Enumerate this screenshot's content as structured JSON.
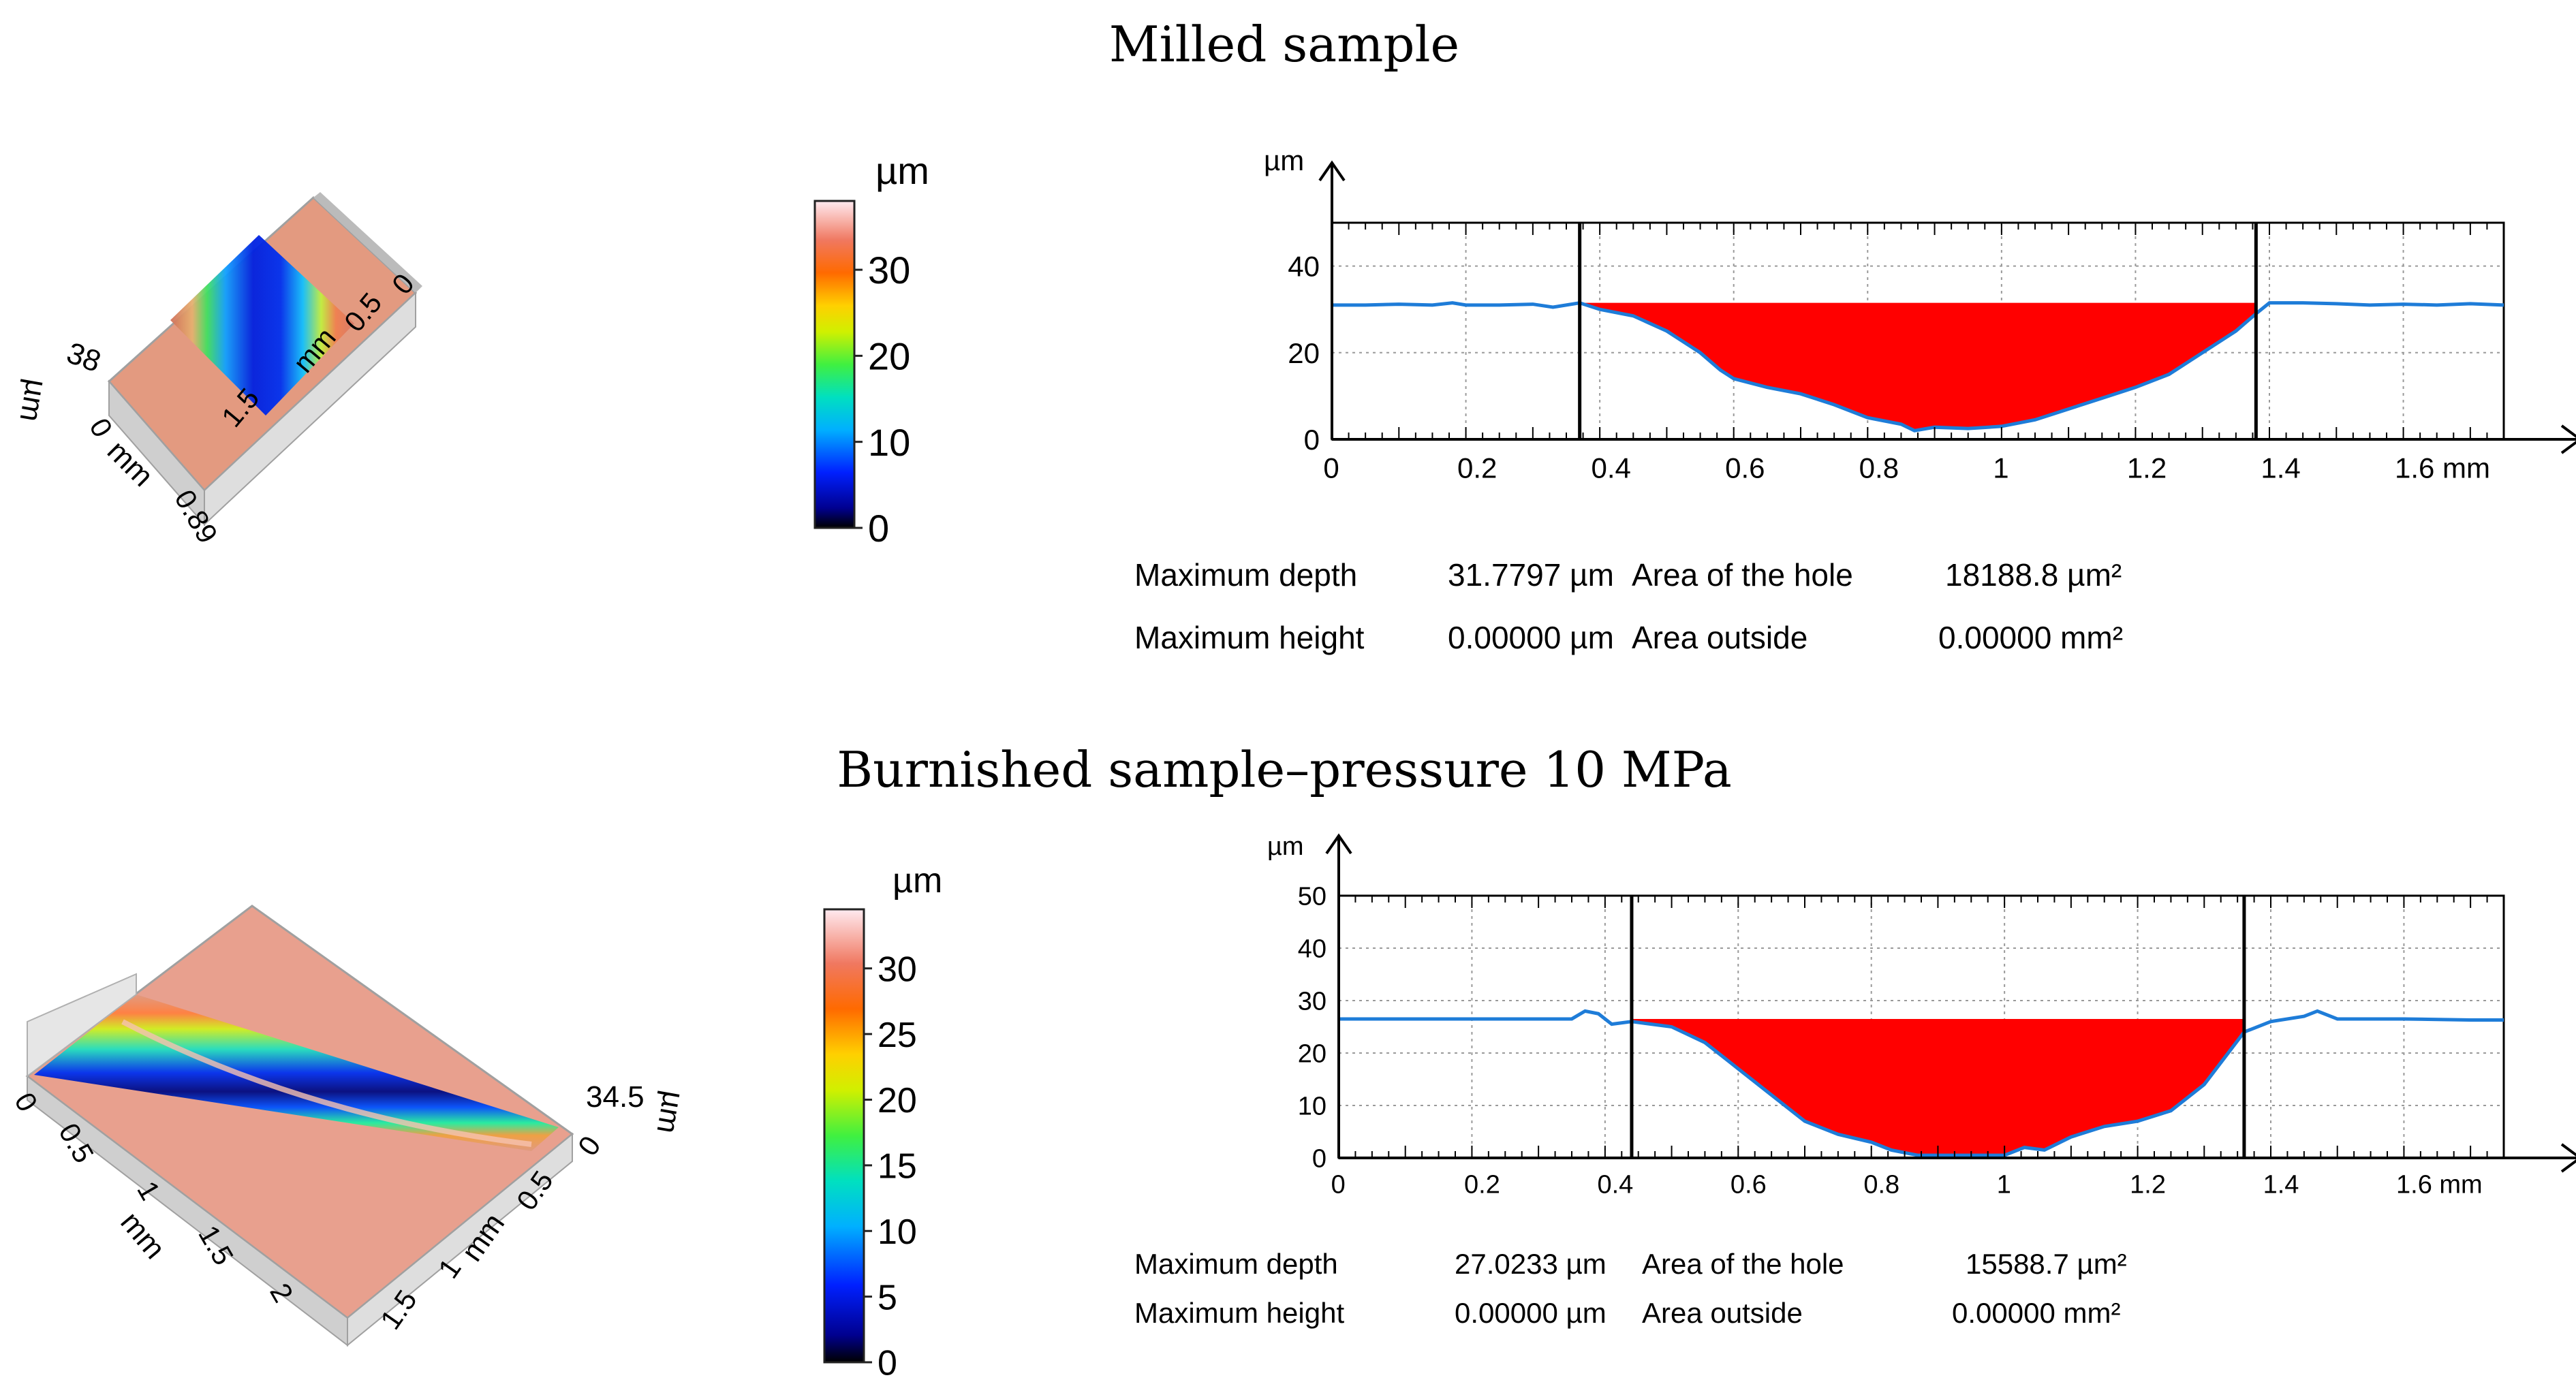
{
  "panels": [
    {
      "title": "Milled sample",
      "surface3d": {
        "height_label": "38",
        "unit": "µm",
        "axis_unit_a": "mm",
        "axis_unit_b": "mm",
        "ticks_a": [
          "0",
          "0.89"
        ],
        "ticks_b": [
          "0",
          "1.5",
          "0.5",
          "0"
        ]
      },
      "colorbar": {
        "unit": "µm",
        "min": 0,
        "max": 38,
        "ticks": [
          "0",
          "10",
          "20",
          "30"
        ],
        "tick_values": [
          0,
          10,
          20,
          30
        ]
      },
      "chart_data": {
        "type": "line",
        "ylabel": "µm",
        "xlabel": "mm",
        "xlim": [
          0,
          1.75
        ],
        "ylim": [
          0,
          50
        ],
        "x_ticks": [
          "0",
          "0.2",
          "0.4",
          "0.6",
          "0.8",
          "1",
          "1.2",
          "1.4",
          "1.6 mm"
        ],
        "x_tick_values": [
          0,
          0.2,
          0.4,
          0.6,
          0.8,
          1.0,
          1.2,
          1.4,
          1.6
        ],
        "y_ticks": [
          "0",
          "20",
          "40"
        ],
        "y_tick_values": [
          0,
          20,
          40
        ],
        "markers": [
          0.37,
          1.38
        ],
        "reference_level": 31.5,
        "series": [
          {
            "name": "profile",
            "x": [
              0,
              0.05,
              0.1,
              0.15,
              0.18,
              0.2,
              0.25,
              0.3,
              0.33,
              0.37,
              0.4,
              0.45,
              0.5,
              0.55,
              0.58,
              0.6,
              0.65,
              0.7,
              0.75,
              0.8,
              0.85,
              0.87,
              0.9,
              0.95,
              1.0,
              1.05,
              1.1,
              1.15,
              1.2,
              1.25,
              1.3,
              1.35,
              1.38,
              1.4,
              1.45,
              1.5,
              1.55,
              1.6,
              1.65,
              1.7,
              1.75
            ],
            "y": [
              31,
              31,
              31.2,
              31,
              31.5,
              31,
              31,
              31.2,
              30.5,
              31.5,
              30,
              28.5,
              25,
              20,
              16,
              14,
              12,
              10.5,
              8,
              5,
              3.5,
              2,
              2.8,
              2.5,
              3,
              4.5,
              7,
              9.5,
              12,
              15,
              20,
              25,
              29,
              31.5,
              31.5,
              31.3,
              31,
              31.2,
              31,
              31.3,
              31
            ]
          }
        ],
        "stats": [
          {
            "label": "Maximum depth",
            "value": "31.7797 µm",
            "label2": "Area of the hole",
            "value2": "18188.8 µm²"
          },
          {
            "label": "Maximum height",
            "value": "0.00000 µm",
            "label2": "Area outside",
            "value2": "0.00000 mm²"
          }
        ],
        "colors": {
          "line": "#1e7cd8",
          "fill": "#ff0000"
        }
      }
    },
    {
      "title": "Burnished sample–pressure 10 MPa",
      "surface3d": {
        "height_label": "34.5",
        "unit": "µm",
        "axis_unit_a": "mm",
        "axis_unit_b": "mm",
        "ticks_a": [
          "0",
          "0.5",
          "1",
          "1.5",
          "2"
        ],
        "ticks_b": [
          "0",
          "0.5",
          "1",
          "1.5"
        ]
      },
      "colorbar": {
        "unit": "µm",
        "min": 0,
        "max": 34.5,
        "ticks": [
          "0",
          "5",
          "10",
          "15",
          "20",
          "25",
          "30"
        ],
        "tick_values": [
          0,
          5,
          10,
          15,
          20,
          25,
          30
        ]
      },
      "chart_data": {
        "type": "line",
        "ylabel": "µm",
        "xlabel": "mm",
        "xlim": [
          0,
          1.75
        ],
        "ylim": [
          0,
          50
        ],
        "x_ticks": [
          "0",
          "0.2",
          "0.4",
          "0.6",
          "0.8",
          "1",
          "1.2",
          "1.4",
          "1.6 mm"
        ],
        "x_tick_values": [
          0,
          0.2,
          0.4,
          0.6,
          0.8,
          1.0,
          1.2,
          1.4,
          1.6
        ],
        "y_ticks": [
          "0",
          "10",
          "20",
          "30",
          "40",
          "50"
        ],
        "y_tick_values": [
          0,
          10,
          20,
          30,
          40,
          50
        ],
        "markers": [
          0.44,
          1.36
        ],
        "reference_level": 26.5,
        "series": [
          {
            "name": "profile",
            "x": [
              0,
              0.1,
              0.2,
              0.3,
              0.35,
              0.37,
              0.39,
              0.41,
              0.44,
              0.5,
              0.55,
              0.6,
              0.65,
              0.7,
              0.75,
              0.8,
              0.83,
              0.87,
              0.9,
              0.95,
              1.0,
              1.03,
              1.06,
              1.1,
              1.15,
              1.2,
              1.25,
              1.3,
              1.33,
              1.36,
              1.4,
              1.45,
              1.47,
              1.5,
              1.6,
              1.7,
              1.75
            ],
            "y": [
              26.5,
              26.5,
              26.5,
              26.5,
              26.5,
              28,
              27.5,
              25.5,
              26,
              25,
              22,
              17,
              12,
              7,
              4.5,
              3,
              1.5,
              0.5,
              0.5,
              0.5,
              0.5,
              2,
              1.5,
              4,
              6,
              7,
              9,
              14,
              19,
              24,
              26,
              27,
              28,
              26.5,
              26.5,
              26.3,
              26.3
            ]
          }
        ],
        "stats": [
          {
            "label": "Maximum depth",
            "value": "27.0233 µm",
            "label2": "Area of the hole",
            "value2": "15588.7 µm²"
          },
          {
            "label": "Maximum height",
            "value": "0.00000 µm",
            "label2": "Area outside",
            "value2": "0.00000 mm²"
          }
        ],
        "colors": {
          "line": "#1e7cd8",
          "fill": "#ff0000"
        }
      }
    }
  ]
}
